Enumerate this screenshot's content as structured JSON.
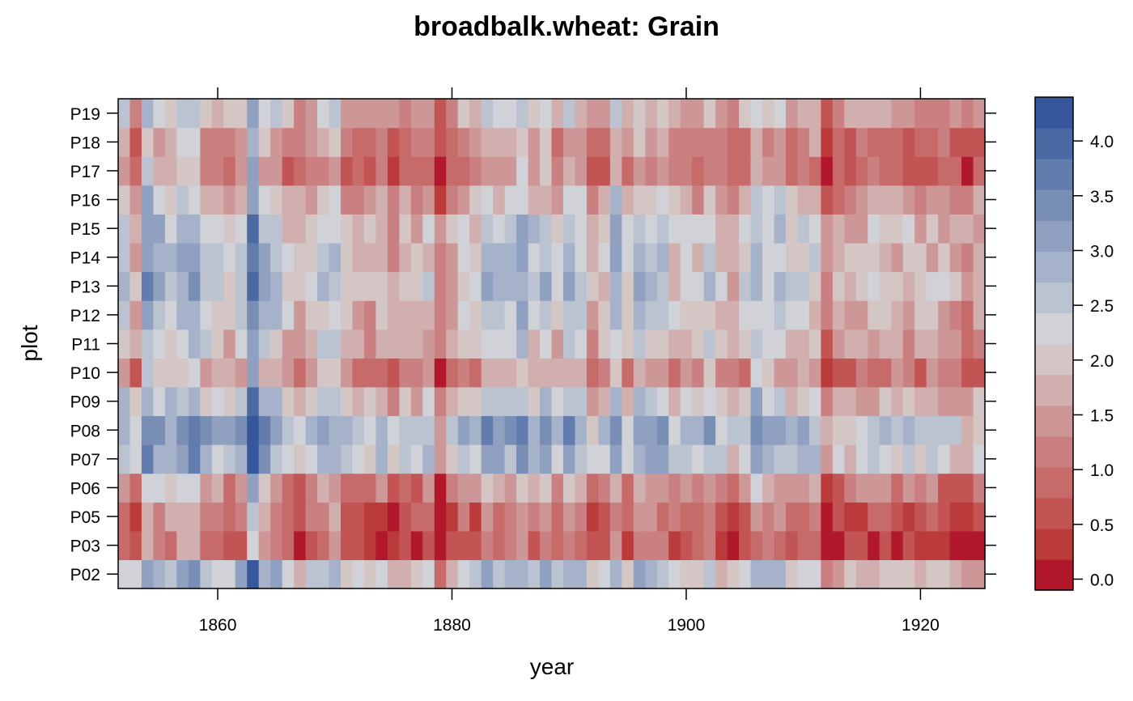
{
  "chart_data": {
    "type": "heatmap",
    "title": "broadbalk.wheat: Grain",
    "xlabel": "year",
    "ylabel": "plot",
    "xlim": [
      1852,
      1925
    ],
    "x_ticks": [
      1860,
      1880,
      1900,
      1920
    ],
    "plots": [
      "P02",
      "P03",
      "P05",
      "P06",
      "P07",
      "P08",
      "P09",
      "P10",
      "P11",
      "P12",
      "P13",
      "P14",
      "P15",
      "P16",
      "P17",
      "P18",
      "P19"
    ],
    "years": [
      1852,
      1853,
      1854,
      1855,
      1856,
      1857,
      1858,
      1859,
      1860,
      1861,
      1862,
      1863,
      1864,
      1865,
      1866,
      1867,
      1868,
      1869,
      1870,
      1871,
      1872,
      1873,
      1874,
      1875,
      1876,
      1877,
      1878,
      1879,
      1880,
      1881,
      1882,
      1883,
      1884,
      1885,
      1886,
      1887,
      1888,
      1889,
      1890,
      1891,
      1892,
      1893,
      1894,
      1895,
      1896,
      1897,
      1898,
      1899,
      1900,
      1901,
      1902,
      1903,
      1904,
      1905,
      1906,
      1907,
      1908,
      1909,
      1910,
      1911,
      1912,
      1913,
      1914,
      1915,
      1916,
      1917,
      1918,
      1919,
      1920,
      1921,
      1922,
      1923,
      1924,
      1925
    ],
    "plot_base": [
      2.5,
      0.8,
      1.0,
      1.5,
      2.7,
      2.9,
      2.2,
      1.5,
      2.0,
      2.2,
      2.4,
      2.3,
      2.3,
      1.9,
      1.3,
      1.4,
      1.9
    ],
    "year_effect": [
      0.2,
      -0.5,
      0.9,
      0.4,
      0.3,
      0.6,
      0.7,
      0.2,
      0.0,
      -0.2,
      0.2,
      1.4,
      0.5,
      0.3,
      -0.3,
      -0.6,
      -0.2,
      0.2,
      0.3,
      -0.4,
      -0.5,
      -0.6,
      -0.3,
      -0.7,
      -0.4,
      -0.5,
      -0.3,
      -1.2,
      -0.6,
      -0.1,
      -0.2,
      0.4,
      0.2,
      0.3,
      0.6,
      0.1,
      0.3,
      -0.2,
      0.5,
      0.2,
      -0.5,
      -0.4,
      0.5,
      -0.2,
      0.4,
      0.1,
      0.2,
      -0.3,
      -0.1,
      -0.3,
      0.2,
      -0.4,
      -0.6,
      -0.2,
      0.5,
      0.2,
      0.3,
      -0.2,
      0.0,
      -0.1,
      -1.1,
      -0.7,
      -0.6,
      -0.5,
      -0.4,
      -0.3,
      -0.5,
      -0.4,
      -0.6,
      -0.4,
      -0.5,
      -0.7,
      -0.9,
      -0.6
    ],
    "value_range": [
      -0.1,
      4.4
    ],
    "colorkey_ticks": [
      0.0,
      0.5,
      1.0,
      1.5,
      2.0,
      2.5,
      3.0,
      3.5,
      4.0
    ],
    "colorkey_tick_labels": [
      "0.0",
      "0.5",
      "1.0",
      "1.5",
      "2.0",
      "2.5",
      "3.0",
      "3.5",
      "4.0"
    ],
    "colorscale": [
      "#B2182B",
      "#BB3A3A",
      "#C25454",
      "#C66A6A",
      "#CA8080",
      "#CE9797",
      "#D2AFAF",
      "#D5C6C6",
      "#D0D2D8",
      "#BCC3D0",
      "#A5B2C9",
      "#8FA0C0",
      "#788EB5",
      "#627CAD",
      "#4C69A4",
      "#36579C"
    ],
    "grid": false
  }
}
